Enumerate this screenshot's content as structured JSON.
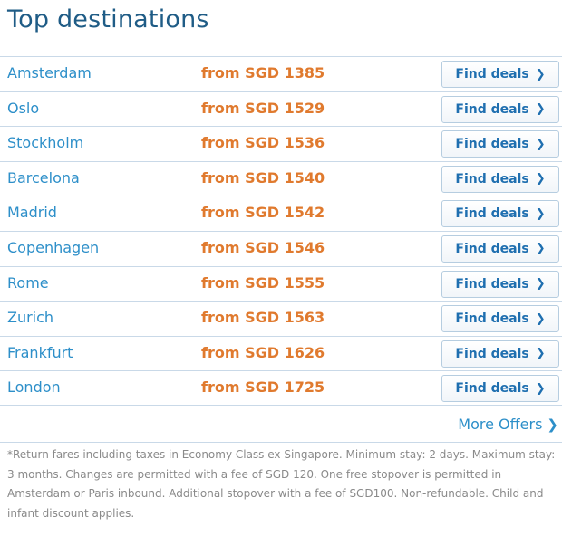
{
  "title": "Top destinations",
  "destinations": [
    {
      "city": "Amsterdam",
      "price": "from SGD 1385",
      "button": "Find deals"
    },
    {
      "city": "Oslo",
      "price": "from SGD 1529",
      "button": "Find deals"
    },
    {
      "city": "Stockholm",
      "price": "from SGD 1536",
      "button": "Find deals"
    },
    {
      "city": "Barcelona",
      "price": "from SGD 1540",
      "button": "Find deals"
    },
    {
      "city": "Madrid",
      "price": "from SGD 1542",
      "button": "Find deals"
    },
    {
      "city": "Copenhagen",
      "price": "from SGD 1546",
      "button": "Find deals"
    },
    {
      "city": "Rome",
      "price": "from SGD 1555",
      "button": "Find deals"
    },
    {
      "city": "Zurich",
      "price": "from SGD 1563",
      "button": "Find deals"
    },
    {
      "city": "Frankfurt",
      "price": "from SGD 1626",
      "button": "Find deals"
    },
    {
      "city": "London",
      "price": "from SGD 1725",
      "button": "Find deals"
    }
  ],
  "more_offers": "More Offers",
  "footnote": "*Return fares including taxes in Economy Class ex Singapore. Minimum stay: 2 days. Maximum stay: 3 months. Changes are permitted with a fee of SGD 120. One free stopover is permitted in Amsterdam or Paris inbound. Additional stopover with a fee of SGD100. Non-refundable. Child and infant discount applies.",
  "icons": {
    "button_chevron": "chevron-right-icon",
    "more_chevron": "chevron-right-icon"
  },
  "colors": {
    "title": "#1f5c86",
    "city_link": "#2d8fc9",
    "price": "#e07a2e",
    "button_text": "#1f6fb0",
    "footnote": "#8a8a8a",
    "divider": "#c9d9e8"
  }
}
